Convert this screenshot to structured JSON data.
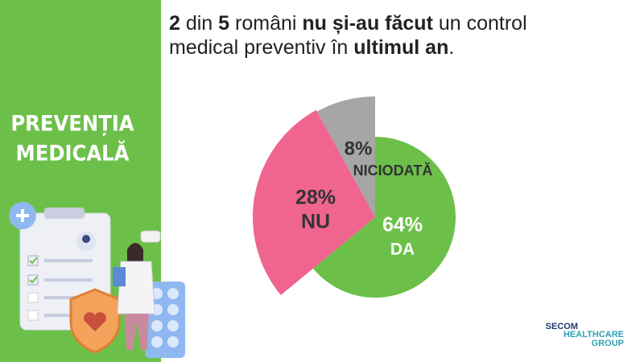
{
  "chart_data": {
    "type": "pie",
    "title_parts": [
      {
        "text": "2",
        "bold": true
      },
      {
        "text": " din ",
        "bold": false
      },
      {
        "text": "5",
        "bold": true
      },
      {
        "text": " români ",
        "bold": false
      },
      {
        "text": "nu și-au făcut",
        "bold": true
      },
      {
        "text": " un control medical preventiv în ",
        "bold": false
      },
      {
        "text": "ultimul an",
        "bold": true
      },
      {
        "text": ".",
        "bold": false
      }
    ],
    "categories": [
      "DA",
      "NU",
      "NICIODATĂ"
    ],
    "values": [
      64,
      28,
      8
    ],
    "value_labels": [
      "64%",
      "28%",
      "8%"
    ],
    "colors": [
      "#6cc04a",
      "#f06490",
      "#a6a6a6"
    ]
  },
  "sidebar": {
    "heading": [
      "PREVENȚIA",
      "MEDICALĂ"
    ]
  },
  "logo": {
    "lines": [
      "SECOM",
      "HEALTHCARE",
      "GROUP"
    ]
  }
}
